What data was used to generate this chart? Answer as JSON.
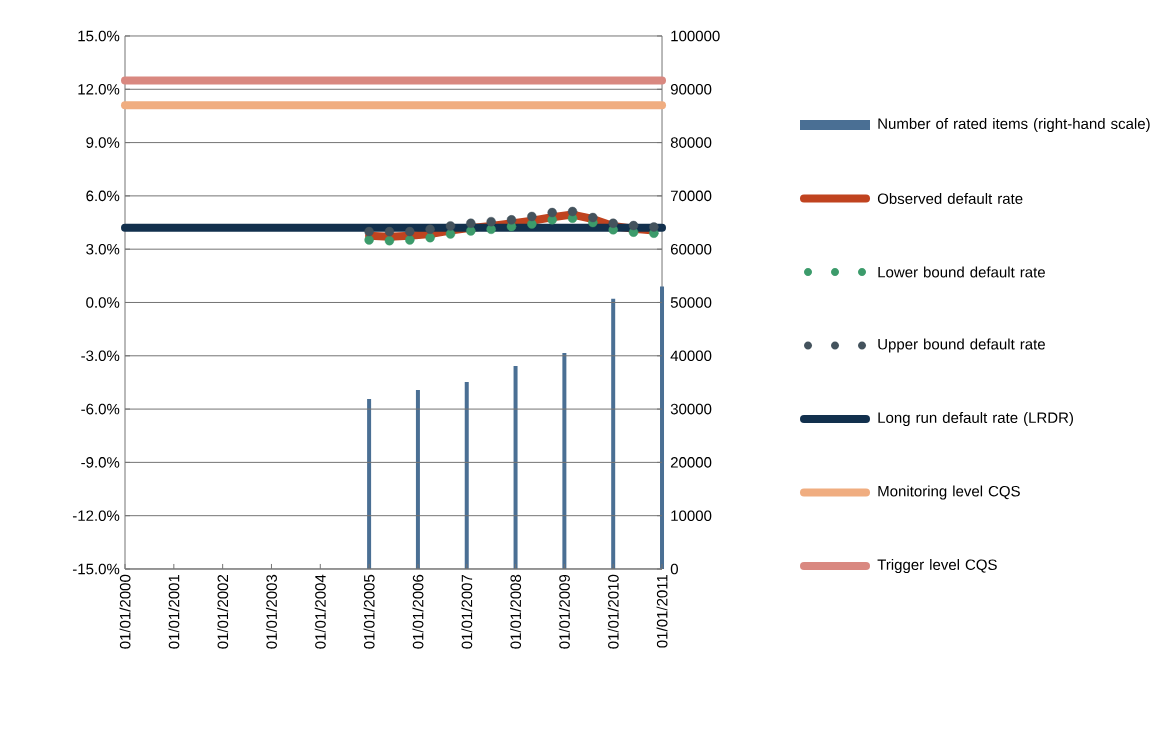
{
  "chart_data": {
    "type": "line",
    "x": [
      "2005-01-01",
      "2005-06-01",
      "2005-11-01",
      "2006-04-01",
      "2006-09-01",
      "2007-02-01",
      "2007-07-01",
      "2007-12-01",
      "2008-05-01",
      "2008-10-01",
      "2009-03-01",
      "2009-08-01",
      "2010-01-01",
      "2010-06-01",
      "2010-11-01"
    ],
    "series": [
      {
        "name": "Number of rated items (right-hand scale)",
        "type": "bar",
        "axis": "y2",
        "color": "#4a6f94",
        "x": [
          "2005-01-01",
          "2006-01-01",
          "2007-01-01",
          "2008-01-01",
          "2009-01-01",
          "2010-01-01",
          "2011-01-01"
        ],
        "values": [
          31900,
          33600,
          35100,
          38100,
          40500,
          50700,
          53000
        ]
      },
      {
        "name": "Observed default rate",
        "color": "#c0431f",
        "values": [
          3.75,
          3.7,
          3.75,
          3.85,
          4.05,
          4.2,
          4.3,
          4.45,
          4.6,
          4.8,
          4.95,
          4.7,
          4.3,
          4.15,
          4.05
        ]
      },
      {
        "name": "Lower bound default rate",
        "type": "scatter",
        "marker": "circle",
        "color": "#3c9b6b",
        "values": [
          3.52,
          3.48,
          3.52,
          3.65,
          3.86,
          4.03,
          4.12,
          4.27,
          4.42,
          4.65,
          4.74,
          4.5,
          4.09,
          3.96,
          3.9
        ]
      },
      {
        "name": "Upper bound default rate",
        "type": "scatter",
        "marker": "circle",
        "color": "#44535d",
        "values": [
          3.99,
          3.99,
          3.99,
          4.12,
          4.31,
          4.46,
          4.55,
          4.65,
          4.84,
          5.06,
          5.12,
          4.78,
          4.46,
          4.33,
          4.25
        ]
      },
      {
        "name": "Long run default rate (LRDR)",
        "color": "#12304d",
        "x": [
          "2000-01-01",
          "2011-01-01"
        ],
        "values": [
          4.2,
          4.2
        ]
      },
      {
        "name": "Monitoring level CQS",
        "color": "#f0ad80",
        "x": [
          "2000-01-01",
          "2011-01-01"
        ],
        "values": [
          11.1,
          11.1
        ]
      },
      {
        "name": "Trigger level CQS",
        "color": "#d98880",
        "x": [
          "2000-01-01",
          "2011-01-01"
        ],
        "values": [
          12.5,
          12.5
        ]
      }
    ],
    "xlim": [
      "2000-01-01",
      "2011-01-01"
    ],
    "xticks": [
      {
        "value": "2000-01-01",
        "label": "01/01/2000"
      },
      {
        "value": "2001-01-01",
        "label": "01/01/2001"
      },
      {
        "value": "2002-01-01",
        "label": "01/01/2002"
      },
      {
        "value": "2003-01-01",
        "label": "01/01/2003"
      },
      {
        "value": "2004-01-01",
        "label": "01/01/2004"
      },
      {
        "value": "2005-01-01",
        "label": "01/01/2005"
      },
      {
        "value": "2006-01-01",
        "label": "01/01/2006"
      },
      {
        "value": "2007-01-01",
        "label": "01/01/2007"
      },
      {
        "value": "2008-01-01",
        "label": "01/01/2008"
      },
      {
        "value": "2009-01-01",
        "label": "01/01/2009"
      },
      {
        "value": "2010-01-01",
        "label": "01/01/2010"
      },
      {
        "value": "2011-01-01",
        "label": "01/01/2011"
      }
    ],
    "ylim": [
      -15,
      15
    ],
    "yticks": [
      {
        "value": 15,
        "label": "15.0%"
      },
      {
        "value": 12,
        "label": "12.0%"
      },
      {
        "value": 9,
        "label": "9.0%"
      },
      {
        "value": 6,
        "label": "6.0%"
      },
      {
        "value": 3,
        "label": "3.0%"
      },
      {
        "value": 0,
        "label": "0.0%"
      },
      {
        "value": -3,
        "label": "-3.0%"
      },
      {
        "value": -6,
        "label": "-6.0%"
      },
      {
        "value": -9,
        "label": "-9.0%"
      },
      {
        "value": -12,
        "label": "-12.0%"
      },
      {
        "value": -15,
        "label": "-15.0%"
      }
    ],
    "y2lim": [
      0,
      100000
    ],
    "y2ticks": [
      0,
      10000,
      20000,
      30000,
      40000,
      50000,
      60000,
      70000,
      80000,
      90000,
      100000
    ],
    "grid": "y",
    "legend": "right"
  }
}
